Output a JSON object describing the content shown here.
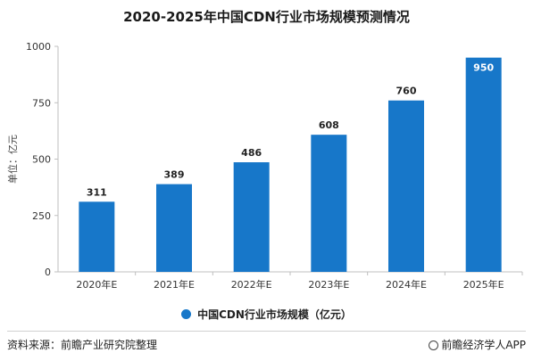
{
  "colors": {
    "bar": "#1777c9",
    "axis": "#bfbfbf",
    "grid": "#e6e6e6"
  },
  "chart_data": {
    "type": "bar",
    "title": "2020-2025年中国CDN行业市场规模预测情况",
    "ylabel": "单位：亿元",
    "xlabel": "",
    "categories": [
      "2020年E",
      "2021年E",
      "2022年E",
      "2023年E",
      "2024年E",
      "2025年E"
    ],
    "series": [
      {
        "name": "中国CDN行业市场规模（亿元）",
        "values": [
          311,
          389,
          486,
          608,
          760,
          950
        ]
      }
    ],
    "ylim": [
      0,
      1000
    ],
    "yticks": [
      0,
      250,
      500,
      750,
      1000
    ],
    "grid": false,
    "legend": "bottom"
  },
  "footer": {
    "source": "资料来源：前瞻产业研究院整理",
    "brand": "前瞻经济学人APP",
    "brand_icon": "prospective-logo-icon"
  }
}
